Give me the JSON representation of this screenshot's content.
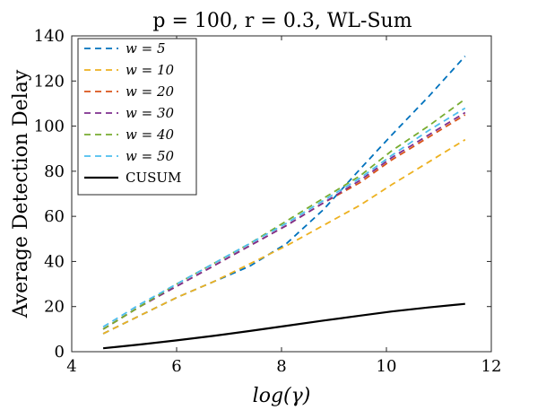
{
  "chart_data": {
    "type": "line",
    "title": "p = 100, r = 0.3, WL-Sum",
    "xlabel": "log(γ)",
    "ylabel": "Average Detection Delay",
    "xlim": [
      4,
      12
    ],
    "ylim": [
      0,
      140
    ],
    "xticks": [
      "4",
      "6",
      "8",
      "10",
      "12"
    ],
    "yticks": [
      "0",
      "20",
      "40",
      "60",
      "80",
      "100",
      "120",
      "140"
    ],
    "legend_position": "top-left",
    "x": [
      4.6,
      5.3,
      6.0,
      6.7,
      7.4,
      8.1,
      8.8,
      9.5,
      10.1,
      10.8,
      11.5
    ],
    "series": [
      {
        "name": "w = 5",
        "color": "#0072BD",
        "style": "dashed",
        "values": [
          8,
          16,
          24,
          31,
          38,
          48,
          63,
          81,
          96,
          113,
          131
        ]
      },
      {
        "name": "w = 10",
        "color": "#EDB120",
        "style": "dashed",
        "values": [
          8,
          16,
          24,
          31,
          39,
          47,
          56,
          65,
          74,
          84,
          94
        ]
      },
      {
        "name": "w = 20",
        "color": "#D95319",
        "style": "dashed",
        "values": [
          10,
          20,
          29,
          38,
          47,
          56,
          66,
          75,
          85,
          95,
          105
        ]
      },
      {
        "name": "w = 30",
        "color": "#7E2F8E",
        "style": "dashed",
        "values": [
          10,
          20,
          29,
          38,
          47,
          56,
          66,
          76,
          86,
          96,
          106
        ]
      },
      {
        "name": "w = 40",
        "color": "#77AC30",
        "style": "dashed",
        "values": [
          10,
          20,
          30,
          39,
          48,
          58,
          68,
          78,
          89,
          100,
          112
        ]
      },
      {
        "name": "w = 50",
        "color": "#4DBEEE",
        "style": "dashed",
        "values": [
          11,
          21,
          30,
          39,
          48,
          57,
          67,
          77,
          87,
          98,
          108
        ]
      },
      {
        "name": "CUSUM",
        "color": "#000000",
        "style": "solid",
        "values": [
          1.5,
          3.2,
          5.0,
          7.0,
          9.2,
          11.5,
          13.8,
          16.0,
          17.8,
          19.6,
          21.2
        ]
      }
    ]
  }
}
